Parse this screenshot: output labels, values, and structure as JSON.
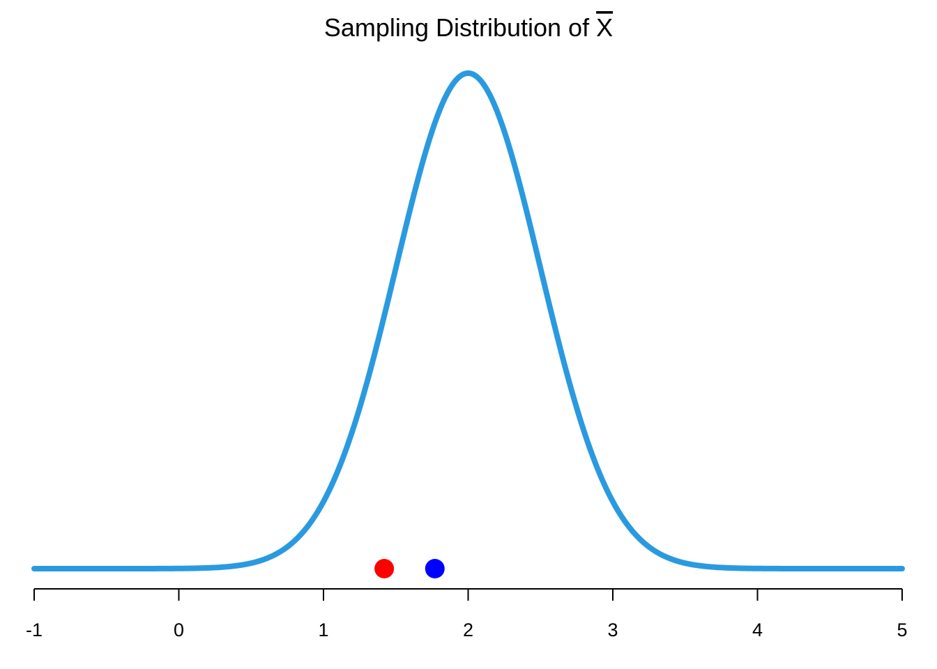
{
  "chart_data": {
    "type": "line",
    "title": "Sampling Distribution of X̄",
    "title_text": "Sampling Distribution of ",
    "title_symbol": "X",
    "xlabel": "",
    "ylabel": "",
    "xlim": [
      -1,
      5
    ],
    "x_ticks": [
      -1,
      0,
      1,
      2,
      3,
      4,
      5
    ],
    "x_tick_labels": [
      "-1",
      "0",
      "1",
      "2",
      "3",
      "4",
      "5"
    ],
    "y_axis_shown": false,
    "grid": false,
    "series": [
      {
        "kind": "normal-density-curve",
        "mean": 2,
        "sd": 0.5,
        "color": "#2a9ae0"
      }
    ],
    "points": [
      {
        "x": 1.42,
        "y": 0,
        "color": "#ff0000"
      },
      {
        "x": 1.77,
        "y": 0,
        "color": "#0000ff"
      }
    ]
  }
}
